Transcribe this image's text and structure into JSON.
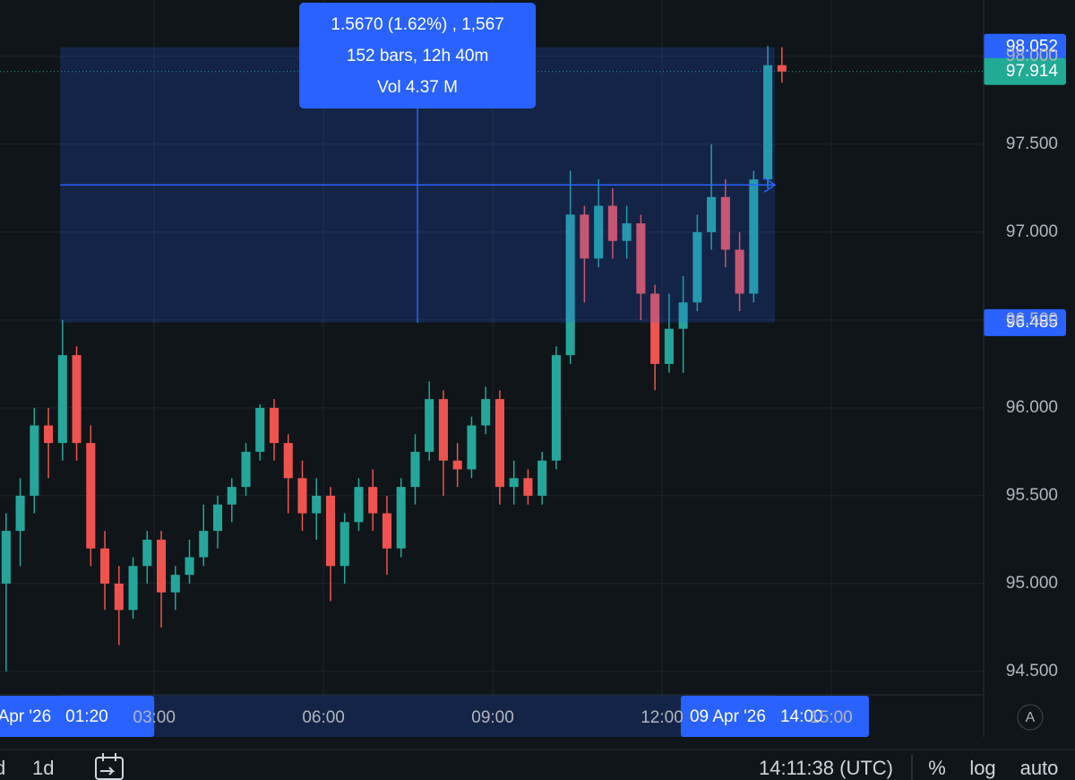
{
  "chart_data": {
    "type": "candlestick",
    "x": [
      "00:15",
      "00:30",
      "00:45",
      "01:00",
      "01:15",
      "01:30",
      "01:45",
      "02:00",
      "02:15",
      "02:30",
      "02:45",
      "03:00",
      "03:15",
      "03:30",
      "03:45",
      "04:00",
      "04:15",
      "04:30",
      "04:45",
      "05:00",
      "05:15",
      "05:30",
      "05:45",
      "06:00",
      "06:15",
      "06:30",
      "06:45",
      "07:00",
      "07:15",
      "07:30",
      "07:45",
      "08:00",
      "08:15",
      "08:30",
      "08:45",
      "09:00",
      "09:15",
      "09:30",
      "09:45",
      "10:00",
      "10:15",
      "10:30",
      "10:45",
      "11:00",
      "11:15",
      "11:30",
      "11:45",
      "12:00",
      "12:15",
      "12:30",
      "12:45",
      "13:00",
      "13:15",
      "13:30",
      "13:45",
      "14:00"
    ],
    "open": [
      95.0,
      95.3,
      95.5,
      95.9,
      95.8,
      96.3,
      95.8,
      95.2,
      95.0,
      94.85,
      95.1,
      95.25,
      94.95,
      95.05,
      95.15,
      95.3,
      95.45,
      95.55,
      95.75,
      96.0,
      95.8,
      95.6,
      95.4,
      95.5,
      95.1,
      95.35,
      95.55,
      95.4,
      95.2,
      95.55,
      95.75,
      96.05,
      95.7,
      95.65,
      95.9,
      96.05,
      95.55,
      95.6,
      95.5,
      95.7,
      96.3,
      97.1,
      96.85,
      97.15,
      96.95,
      97.05,
      96.65,
      96.25,
      96.45,
      96.6,
      97.0,
      97.2,
      96.9,
      96.65,
      97.3,
      97.95
    ],
    "high": [
      95.4,
      95.6,
      96.0,
      96.0,
      96.5,
      96.35,
      95.9,
      95.3,
      95.1,
      95.15,
      95.3,
      95.3,
      95.1,
      95.25,
      95.45,
      95.5,
      95.6,
      95.8,
      96.02,
      96.05,
      95.85,
      95.7,
      95.6,
      95.55,
      95.4,
      95.6,
      95.65,
      95.5,
      95.6,
      95.85,
      96.15,
      96.1,
      95.8,
      95.95,
      96.12,
      96.1,
      95.7,
      95.65,
      95.75,
      96.35,
      97.35,
      97.15,
      97.3,
      97.25,
      97.15,
      97.1,
      96.7,
      96.65,
      96.75,
      97.1,
      97.5,
      97.3,
      97.0,
      97.35,
      98.06,
      98.052
    ],
    "low": [
      94.5,
      95.1,
      95.4,
      95.6,
      95.7,
      95.7,
      95.1,
      94.85,
      94.65,
      94.8,
      95.0,
      94.75,
      94.85,
      95.0,
      95.1,
      95.2,
      95.35,
      95.5,
      95.7,
      95.7,
      95.4,
      95.3,
      95.25,
      94.9,
      95.0,
      95.3,
      95.3,
      95.05,
      95.15,
      95.45,
      95.7,
      95.5,
      95.55,
      95.6,
      95.85,
      95.45,
      95.45,
      95.45,
      95.45,
      95.65,
      96.25,
      96.6,
      96.8,
      96.85,
      96.85,
      96.5,
      96.1,
      96.2,
      96.2,
      96.55,
      96.9,
      96.8,
      96.55,
      96.6,
      97.25,
      97.85
    ],
    "close": [
      95.3,
      95.5,
      95.9,
      95.8,
      96.3,
      95.8,
      95.2,
      95.0,
      94.85,
      95.1,
      95.25,
      94.95,
      95.05,
      95.15,
      95.3,
      95.45,
      95.55,
      95.75,
      96.0,
      95.8,
      95.6,
      95.4,
      95.5,
      95.1,
      95.35,
      95.55,
      95.4,
      95.2,
      95.55,
      95.75,
      96.05,
      95.7,
      95.65,
      95.9,
      96.05,
      95.55,
      95.6,
      95.5,
      95.7,
      96.3,
      97.1,
      96.85,
      97.15,
      96.95,
      97.05,
      96.65,
      96.25,
      96.45,
      96.6,
      97.0,
      97.2,
      96.9,
      96.65,
      97.3,
      97.95,
      97.914
    ],
    "up_color": "#26a69a",
    "down_color": "#ef5350",
    "xlim": [
      "00:16",
      "17:42"
    ],
    "xticks": [
      "03:00",
      "06:00",
      "09:00",
      "12:00",
      "15:00"
    ],
    "ylim": [
      94.367,
      98.321
    ],
    "yticks": [
      {
        "value": 94.5,
        "label": "94.500"
      },
      {
        "value": 95,
        "label": "95.000"
      },
      {
        "value": 95.5,
        "label": "95.500"
      },
      {
        "value": 96,
        "label": "96.000"
      },
      {
        "value": 96.5,
        "label": "96.500"
      },
      {
        "value": 97,
        "label": "97.000"
      },
      {
        "value": 97.5,
        "label": "97.500"
      },
      {
        "value": 98,
        "label": "98.000"
      }
    ],
    "grid": true,
    "measure": {
      "date": "09 Apr '26",
      "start": "01:20",
      "end": "14:00",
      "high": 98.052,
      "low": 96.485,
      "lines": [
        "1.5670 (1.62%) , 1,567",
        "152 bars, 12h 40m",
        "Vol 4.37 M"
      ]
    }
  },
  "toolbar": {
    "intervals": [
      "d",
      "1d"
    ],
    "clock": "14:11:38 (UTC)",
    "options": [
      "%",
      "log",
      "auto"
    ],
    "scale_button": "A"
  }
}
